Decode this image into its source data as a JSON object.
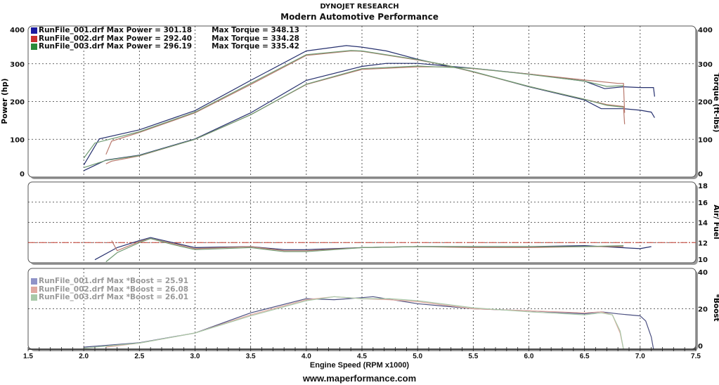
{
  "header": {
    "title": "DYNOJET RESEARCH",
    "subtitle": "Modern Automotive Performance"
  },
  "footer": {
    "url": "www.maperformance.com"
  },
  "chart_data": {
    "type": "line",
    "xlabel": "Engine Speed (RPM x1000)",
    "xlim": [
      1.5,
      7.5
    ],
    "xticks": [
      "1.5",
      "2.0",
      "2.5",
      "3.0",
      "3.5",
      "4.0",
      "4.5",
      "5.0",
      "5.5",
      "6.0",
      "6.5",
      "7.0",
      "7.5"
    ],
    "colors": {
      "run1": "#26306e",
      "run2": "#b8786c",
      "run3": "#6f9a72",
      "afr_ref": "#c0392b",
      "boost1": "#8f93c8",
      "boost2": "#e0a8a0",
      "boost3": "#a8c8a8"
    },
    "panels": [
      {
        "name": "power-torque",
        "ylabel_left": "Power (hp)",
        "ylabel_right": "Torque (ft-lbs)",
        "ylim": [
          0,
          400
        ],
        "yticks_left": [
          "0",
          "100",
          "200",
          "300",
          "400"
        ],
        "yticks_right": [
          "0",
          "100",
          "200",
          "300",
          "400"
        ],
        "legend": [
          {
            "text": "RunFile_001.drf Max Power = 301.18",
            "torque": "Max Torque = 348.13",
            "color": "#1a1aa0"
          },
          {
            "text": "RunFile_002.drf Max Power = 292.40",
            "torque": "Max Torque = 334.28",
            "color": "#c83030"
          },
          {
            "text": "RunFile_003.drf Max Power = 296.19",
            "torque": "Max Torque = 335.42",
            "color": "#2a8a3a"
          }
        ],
        "series": [
          {
            "name": "RunFile_001 Power",
            "run": "run1",
            "x": [
              2.0,
              2.2,
              2.5,
              3.0,
              3.5,
              4.0,
              4.5,
              4.72,
              5.0,
              5.5,
              6.0,
              6.5,
              6.68,
              6.85,
              7.0,
              7.12,
              7.13
            ],
            "y": [
              17,
              45,
              58,
              101,
              170,
              256,
              293,
              301,
              301,
              288,
              273,
              254,
              234,
              239,
              237,
              237,
              213
            ]
          },
          {
            "name": "RunFile_001 Torque",
            "run": "run1",
            "x": [
              2.0,
              2.14,
              2.5,
              3.0,
              3.5,
              4.0,
              4.36,
              4.5,
              4.72,
              5.0,
              5.23,
              5.5,
              6.0,
              6.5,
              6.65,
              6.85,
              7.0,
              7.1,
              7.13
            ],
            "y": [
              32,
              101,
              125,
              176,
              256,
              334,
              348,
              344,
              334,
              312,
              297,
              279,
              239,
              204,
              181,
              181,
              177,
              172,
              157
            ]
          },
          {
            "name": "RunFile_002 Power",
            "run": "run2",
            "x": [
              2.2,
              2.25,
              2.5,
              3.0,
              3.5,
              4.0,
              4.5,
              5.0,
              5.25,
              5.5,
              6.0,
              6.5,
              6.8,
              6.85,
              6.86
            ],
            "y": [
              35,
              42,
              56,
              100,
              165,
              245,
              285,
              292,
              292,
              287,
              273,
              257,
              248,
              248,
              170
            ]
          },
          {
            "name": "RunFile_002 Torque",
            "run": "run2",
            "x": [
              2.2,
              2.25,
              2.5,
              3.0,
              3.5,
              4.0,
              4.4,
              4.5,
              5.0,
              5.25,
              5.5,
              6.0,
              6.5,
              6.7,
              6.85,
              6.86
            ],
            "y": [
              60,
              95,
              118,
              170,
              245,
              322,
              334,
              333,
              310,
              297,
              278,
              240,
              206,
              192,
              187,
              140
            ]
          },
          {
            "name": "RunFile_003 Power",
            "run": "run3",
            "x": [
              2.0,
              2.2,
              2.5,
              3.0,
              3.5,
              4.0,
              4.5,
              5.0,
              5.5,
              6.0,
              6.5,
              6.7,
              6.85
            ],
            "y": [
              25,
              44,
              57,
              100,
              165,
              246,
              287,
              294,
              288,
              272,
              254,
              240,
              242
            ]
          },
          {
            "name": "RunFile_003 Torque",
            "run": "run3",
            "x": [
              2.0,
              2.1,
              2.5,
              3.0,
              3.5,
              4.0,
              4.4,
              4.5,
              5.0,
              5.25,
              5.5,
              6.0,
              6.5,
              6.7,
              6.85
            ],
            "y": [
              50,
              90,
              120,
              172,
              248,
              324,
              335,
              334,
              311,
              297,
              279,
              240,
              206,
              190,
              185
            ]
          }
        ]
      },
      {
        "name": "air-fuel",
        "ylabel_right": "Air/ Fuel",
        "ylim": [
          10,
          18
        ],
        "yticks_right": [
          "10",
          "12",
          "14",
          "16",
          "18"
        ],
        "reference": 12,
        "series": [
          {
            "name": "RunFile_001 AFR",
            "run": "run1",
            "x": [
              2.1,
              2.3,
              2.5,
              2.6,
              2.8,
              3.0,
              3.5,
              3.8,
              4.0,
              4.5,
              5.0,
              5.5,
              6.0,
              6.5,
              7.0,
              7.1
            ],
            "y": [
              10.3,
              11.5,
              12.2,
              12.5,
              12.0,
              11.5,
              11.6,
              11.3,
              11.3,
              11.5,
              11.6,
              11.6,
              11.6,
              11.7,
              11.4,
              11.6
            ]
          },
          {
            "name": "RunFile_002 AFR",
            "run": "run2",
            "x": [
              2.25,
              2.3,
              2.5,
              2.6,
              2.8,
              3.0,
              3.5,
              3.8,
              4.0,
              4.5,
              5.0,
              5.5,
              6.0,
              6.5,
              6.85
            ],
            "y": [
              12.2,
              11.2,
              12.1,
              12.4,
              11.9,
              11.4,
              11.6,
              11.2,
              11.2,
              11.5,
              11.6,
              11.5,
              11.5,
              11.6,
              11.6
            ]
          },
          {
            "name": "RunFile_003 AFR",
            "run": "run3",
            "x": [
              2.2,
              2.3,
              2.5,
              2.6,
              2.8,
              3.0,
              3.5,
              3.8,
              4.0,
              4.5,
              5.0,
              5.5,
              6.0,
              6.5,
              6.85
            ],
            "y": [
              10.1,
              11.0,
              12.0,
              12.4,
              11.8,
              11.3,
              11.5,
              11.1,
              11.1,
              11.5,
              11.6,
              11.6,
              11.6,
              11.6,
              11.7
            ]
          }
        ]
      },
      {
        "name": "boost",
        "ylabel_right": "*Boost",
        "ylim": [
          0,
          40
        ],
        "yticks_right": [
          "0",
          "20",
          "40"
        ],
        "legend": [
          {
            "text": "RunFile_001.drf Max *Boost = 25.91",
            "color": "#8f93c8"
          },
          {
            "text": "RunFile_002.drf Max *Boost = 26.08",
            "color": "#e0a8a0"
          },
          {
            "text": "RunFile_003.drf Max *Boost = 26.01",
            "color": "#a8c8a8"
          }
        ],
        "series": [
          {
            "name": "RunFile_001 Boost",
            "run": "run1",
            "x": [
              2.0,
              2.5,
              3.0,
              3.5,
              4.0,
              4.25,
              4.5,
              4.6,
              5.0,
              5.5,
              6.0,
              6.5,
              6.65,
              6.8,
              7.0,
              7.05,
              7.1,
              7.12
            ],
            "y": [
              1,
              3.2,
              8,
              18,
              25,
              24.5,
              25.5,
              26,
              22.5,
              20,
              19,
              17.5,
              18.5,
              17.5,
              16.5,
              14,
              6,
              0
            ]
          },
          {
            "name": "RunFile_002 Boost",
            "run": "run2",
            "x": [
              2.2,
              2.5,
              3.0,
              3.5,
              4.0,
              4.25,
              4.5,
              4.75,
              5.0,
              5.5,
              6.0,
              6.5,
              6.65,
              6.75,
              6.82,
              6.85
            ],
            "y": [
              1,
              3,
              8,
              17,
              24.5,
              26,
              25,
              24.5,
              23.5,
              20,
              19,
              18,
              18.5,
              17,
              8,
              0
            ]
          },
          {
            "name": "RunFile_003 Boost",
            "run": "run3",
            "x": [
              2.0,
              2.5,
              3.0,
              3.5,
              4.0,
              4.25,
              4.5,
              4.75,
              5.0,
              5.5,
              6.0,
              6.5,
              6.65,
              6.75,
              6.82,
              6.85
            ],
            "y": [
              0.5,
              3,
              8,
              16.5,
              24,
              26,
              25,
              25,
              24,
              20.5,
              18.5,
              17,
              18,
              17,
              9,
              0
            ]
          }
        ]
      }
    ]
  }
}
